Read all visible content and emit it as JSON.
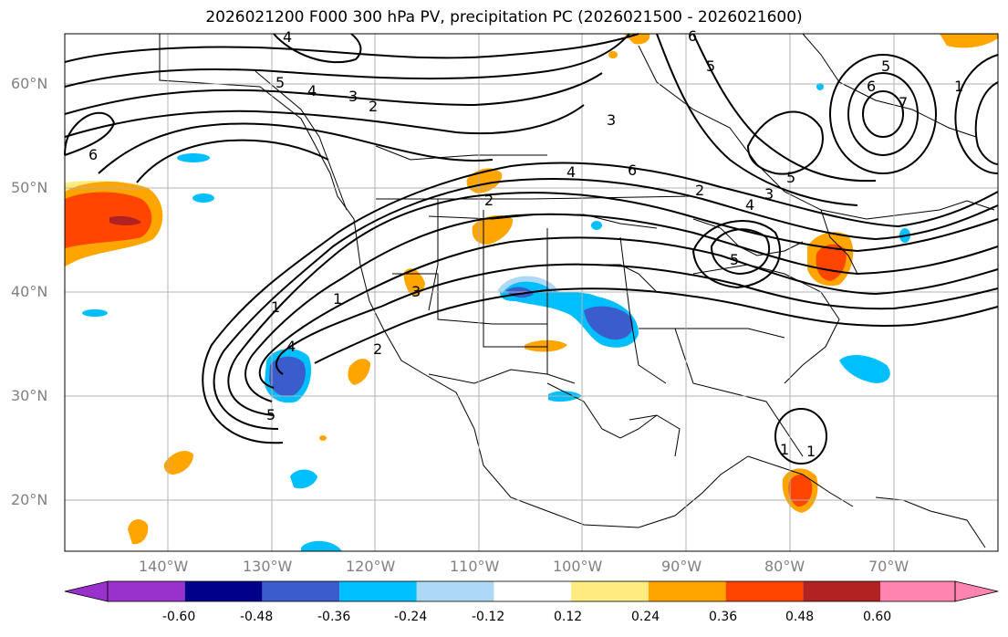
{
  "title": "2026021200 F000 300 hPa PV, precipitation PC (2026021500 - 2026021600)",
  "lat_labels": [
    "60°N",
    "50°N",
    "40°N",
    "30°N",
    "20°N"
  ],
  "lon_labels": [
    "140°W",
    "130°W",
    "120°W",
    "110°W",
    "100°W",
    "90°W",
    "80°W",
    "70°W"
  ],
  "colorbar": {
    "tick_labels": [
      "-0.60",
      "-0.48",
      "-0.36",
      "-0.24",
      "-0.12",
      "0.12",
      "0.24",
      "0.36",
      "0.48",
      "0.60"
    ],
    "colors": [
      "#9932cc",
      "#00008b",
      "#3a5ccc",
      "#00bfff",
      "#add8f6",
      "#ffffff",
      "#ffeb80",
      "#ffa500",
      "#ff4500",
      "#b22222",
      "#ff85b0"
    ]
  },
  "contour_labels": [
    "5",
    "4",
    "3",
    "2",
    "1",
    "2",
    "3",
    "4",
    "5",
    "6",
    "1",
    "2",
    "3",
    "5",
    "4",
    "3",
    "2",
    "1",
    "6",
    "5",
    "4",
    "6",
    "5",
    "6",
    "7",
    "4",
    "5",
    "1",
    "1"
  ],
  "colors": {
    "axis_label": "#808080",
    "grid": "#b0b0b0",
    "contour": "#000000"
  }
}
